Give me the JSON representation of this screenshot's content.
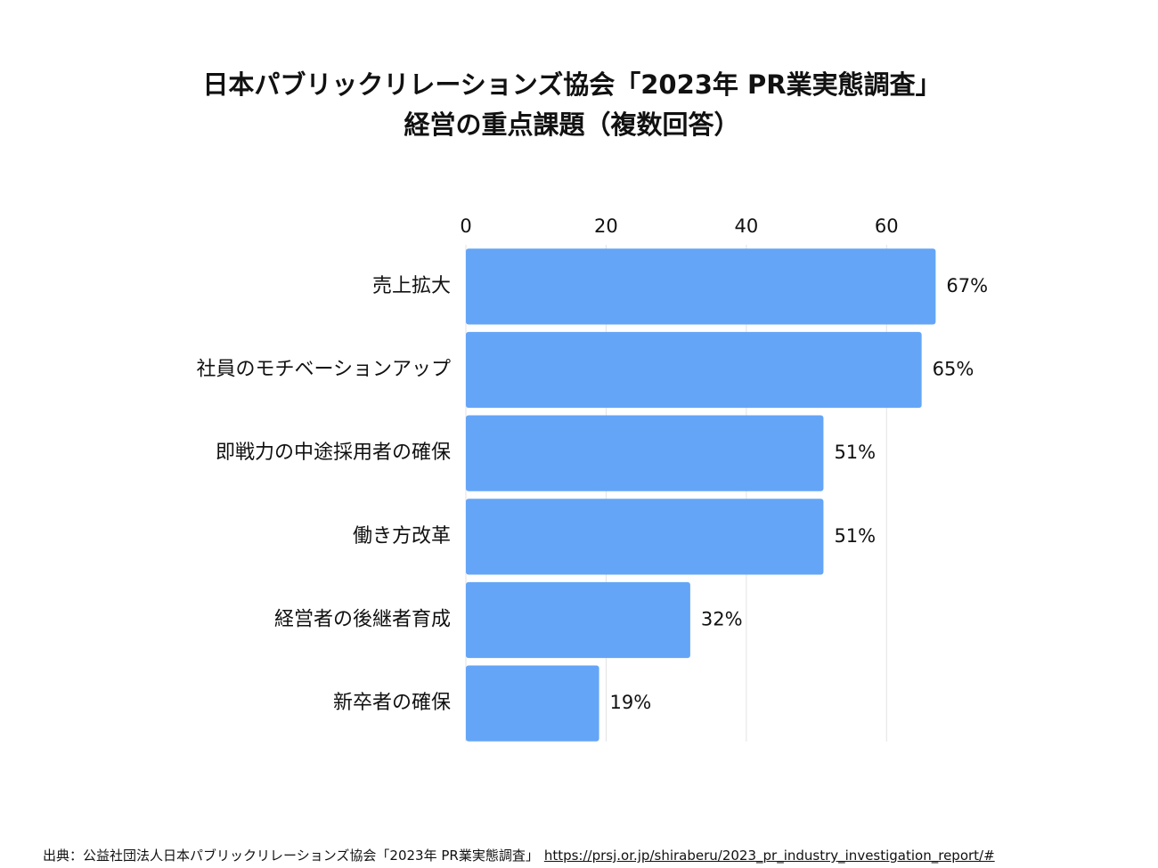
{
  "chart_data": {
    "type": "bar",
    "orientation": "horizontal",
    "title": "日本パブリックリレーションズ協会「2023年 PR業実態調査」",
    "subtitle": "経営の重点課題（複数回答）",
    "categories": [
      "売上拡大",
      "社員のモチベーションアップ",
      "即戦力の中途採用者の確保",
      "働き方改革",
      "経営者の後継者育成",
      "新卒者の確保"
    ],
    "values": [
      67,
      65,
      51,
      51,
      32,
      19
    ],
    "value_labels": [
      "67%",
      "65%",
      "51%",
      "51%",
      "32%",
      "19%"
    ],
    "color": "#64a5f7",
    "xlim": [
      0,
      70
    ],
    "xticks": [
      0,
      20,
      40,
      60
    ],
    "grid": true
  },
  "source": {
    "text": "出典：公益社団法人日本パブリックリレーションズ協会「2023年 PR業実態調査」",
    "url": "https://prsj.or.jp/shiraberu/2023_pr_industry_investigation_report/#"
  }
}
